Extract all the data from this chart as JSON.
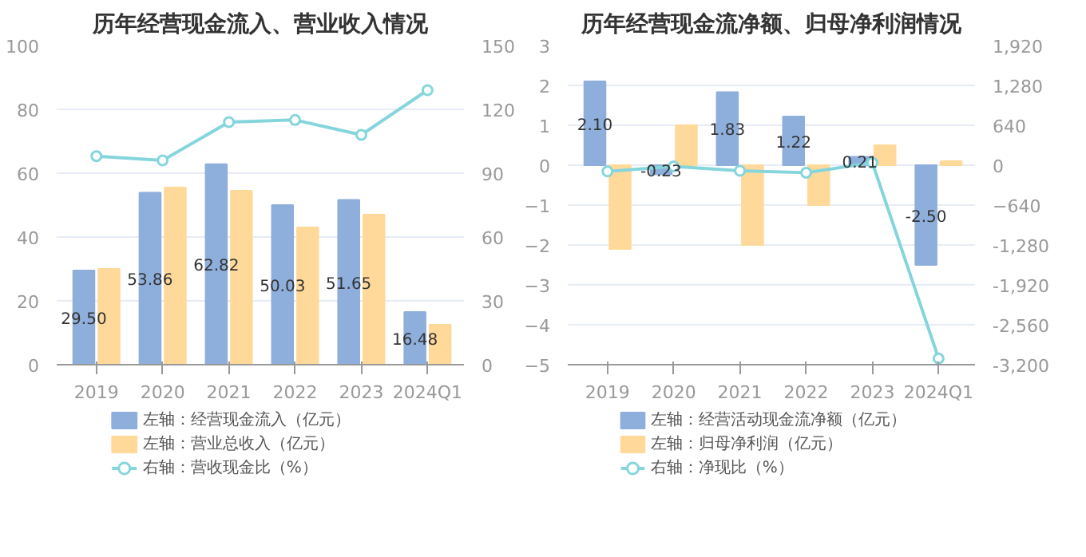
{
  "chart_data": [
    {
      "type": "bar",
      "title": "历年经营现金流入、营业收入情况",
      "categories": [
        "2019",
        "2020",
        "2021",
        "2022",
        "2023",
        "2024Q1"
      ],
      "ylim": [
        0,
        100
      ],
      "yticks": [
        0,
        20,
        40,
        60,
        80,
        100
      ],
      "y2lim": [
        0,
        150
      ],
      "y2ticks": [
        0,
        30,
        60,
        90,
        120,
        150
      ],
      "grid": "y",
      "legend": "bottom",
      "series": [
        {
          "name": "左轴：经营现金流入（亿元）",
          "color": "#8eaedc",
          "values": [
            29.5,
            53.86,
            62.82,
            50.03,
            51.65,
            16.48
          ],
          "value_labels": [
            "29.50",
            "53.86",
            "62.82",
            "50.03",
            "51.65",
            "16.48"
          ]
        },
        {
          "name": "左轴：营业总收入（亿元）",
          "color": "#ffd99a",
          "values": [
            30,
            55.5,
            54.5,
            43,
            47,
            12.5
          ]
        },
        {
          "name": "右轴：营收现金比（%）",
          "type": "line",
          "axis": "y2",
          "marker": "circle",
          "color": "#85d5dc",
          "values": [
            98,
            96,
            114,
            115,
            108,
            129
          ]
        }
      ]
    },
    {
      "type": "bar",
      "title": "历年经营现金流净额、归母净利润情况",
      "categories": [
        "2019",
        "2020",
        "2021",
        "2022",
        "2023",
        "2024Q1"
      ],
      "ylim": [
        -5,
        3
      ],
      "yticks": [
        -5,
        -4,
        -3,
        -2,
        -1,
        0,
        1,
        2,
        3
      ],
      "y2lim": [
        -3200,
        1920
      ],
      "y2ticks": [
        {
          "value": -3200,
          "label": "-3,200"
        },
        {
          "value": -2560,
          "label": "-2,560"
        },
        {
          "value": -1920,
          "label": "-1,920"
        },
        {
          "value": -1280,
          "label": "-1,280"
        },
        -640,
        0,
        640,
        {
          "value": 1280,
          "label": "1,280"
        },
        {
          "value": 1920,
          "label": "1,920"
        }
      ],
      "grid": "y",
      "legend": "bottom",
      "series": [
        {
          "name": "左轴：经营活动现金流净额（亿元）",
          "color": "#8eaedc",
          "values": [
            2.1,
            -0.23,
            1.83,
            1.22,
            0.21,
            -2.5
          ],
          "value_labels": [
            "2.10",
            "-0.23",
            "1.83",
            "1.22",
            "0.21",
            "-2.50"
          ]
        },
        {
          "name": "左轴：归母净利润（亿元）",
          "color": "#ffd99a",
          "values": [
            -2.1,
            1.0,
            -2.0,
            -1.0,
            0.5,
            0.1
          ]
        },
        {
          "name": "右轴：净现比（%）",
          "type": "line",
          "axis": "y2",
          "marker": "circle",
          "color": "#85d5dc",
          "values": [
            -100,
            -20,
            -90,
            -120,
            40,
            -3100
          ]
        }
      ]
    }
  ]
}
